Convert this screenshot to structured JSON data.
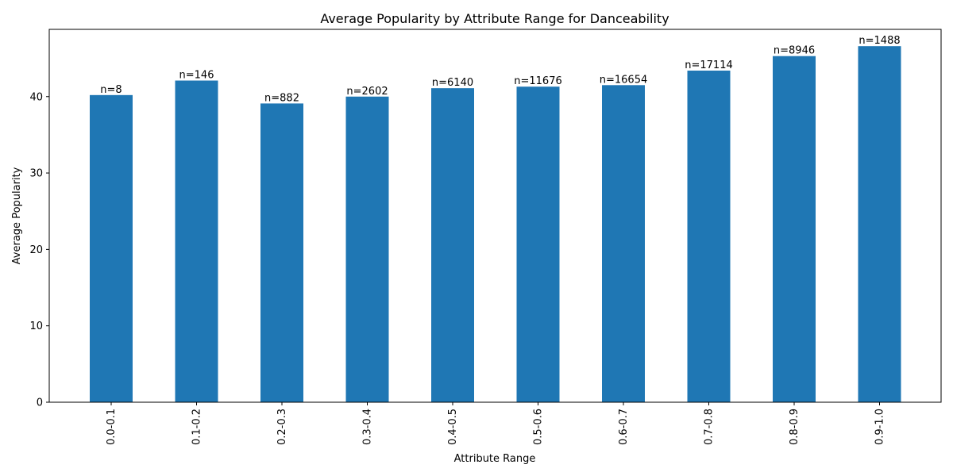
{
  "chart_data": {
    "type": "bar",
    "title": "Average Popularity by Attribute Range for Danceability",
    "xlabel": "Attribute Range",
    "ylabel": "Average Popularity",
    "categories": [
      "0.0-0.1",
      "0.1-0.2",
      "0.2-0.3",
      "0.3-0.4",
      "0.4-0.5",
      "0.5-0.6",
      "0.6-0.7",
      "0.7-0.8",
      "0.8-0.9",
      "0.9-1.0"
    ],
    "values": [
      40.2,
      42.1,
      39.1,
      40.0,
      41.1,
      41.3,
      41.5,
      43.4,
      45.3,
      46.6
    ],
    "data_labels": [
      "n=8",
      "n=146",
      "n=882",
      "n=2602",
      "n=6140",
      "n=11676",
      "n=16654",
      "n=17114",
      "n=8946",
      "n=1488"
    ],
    "ylim": [
      0,
      48.8
    ],
    "yticks": [
      0,
      10,
      20,
      30,
      40
    ],
    "ytick_labels": [
      "0",
      "10",
      "20",
      "30",
      "40"
    ],
    "bar_color": "#1f77b4",
    "grid": false,
    "legend": "none"
  }
}
